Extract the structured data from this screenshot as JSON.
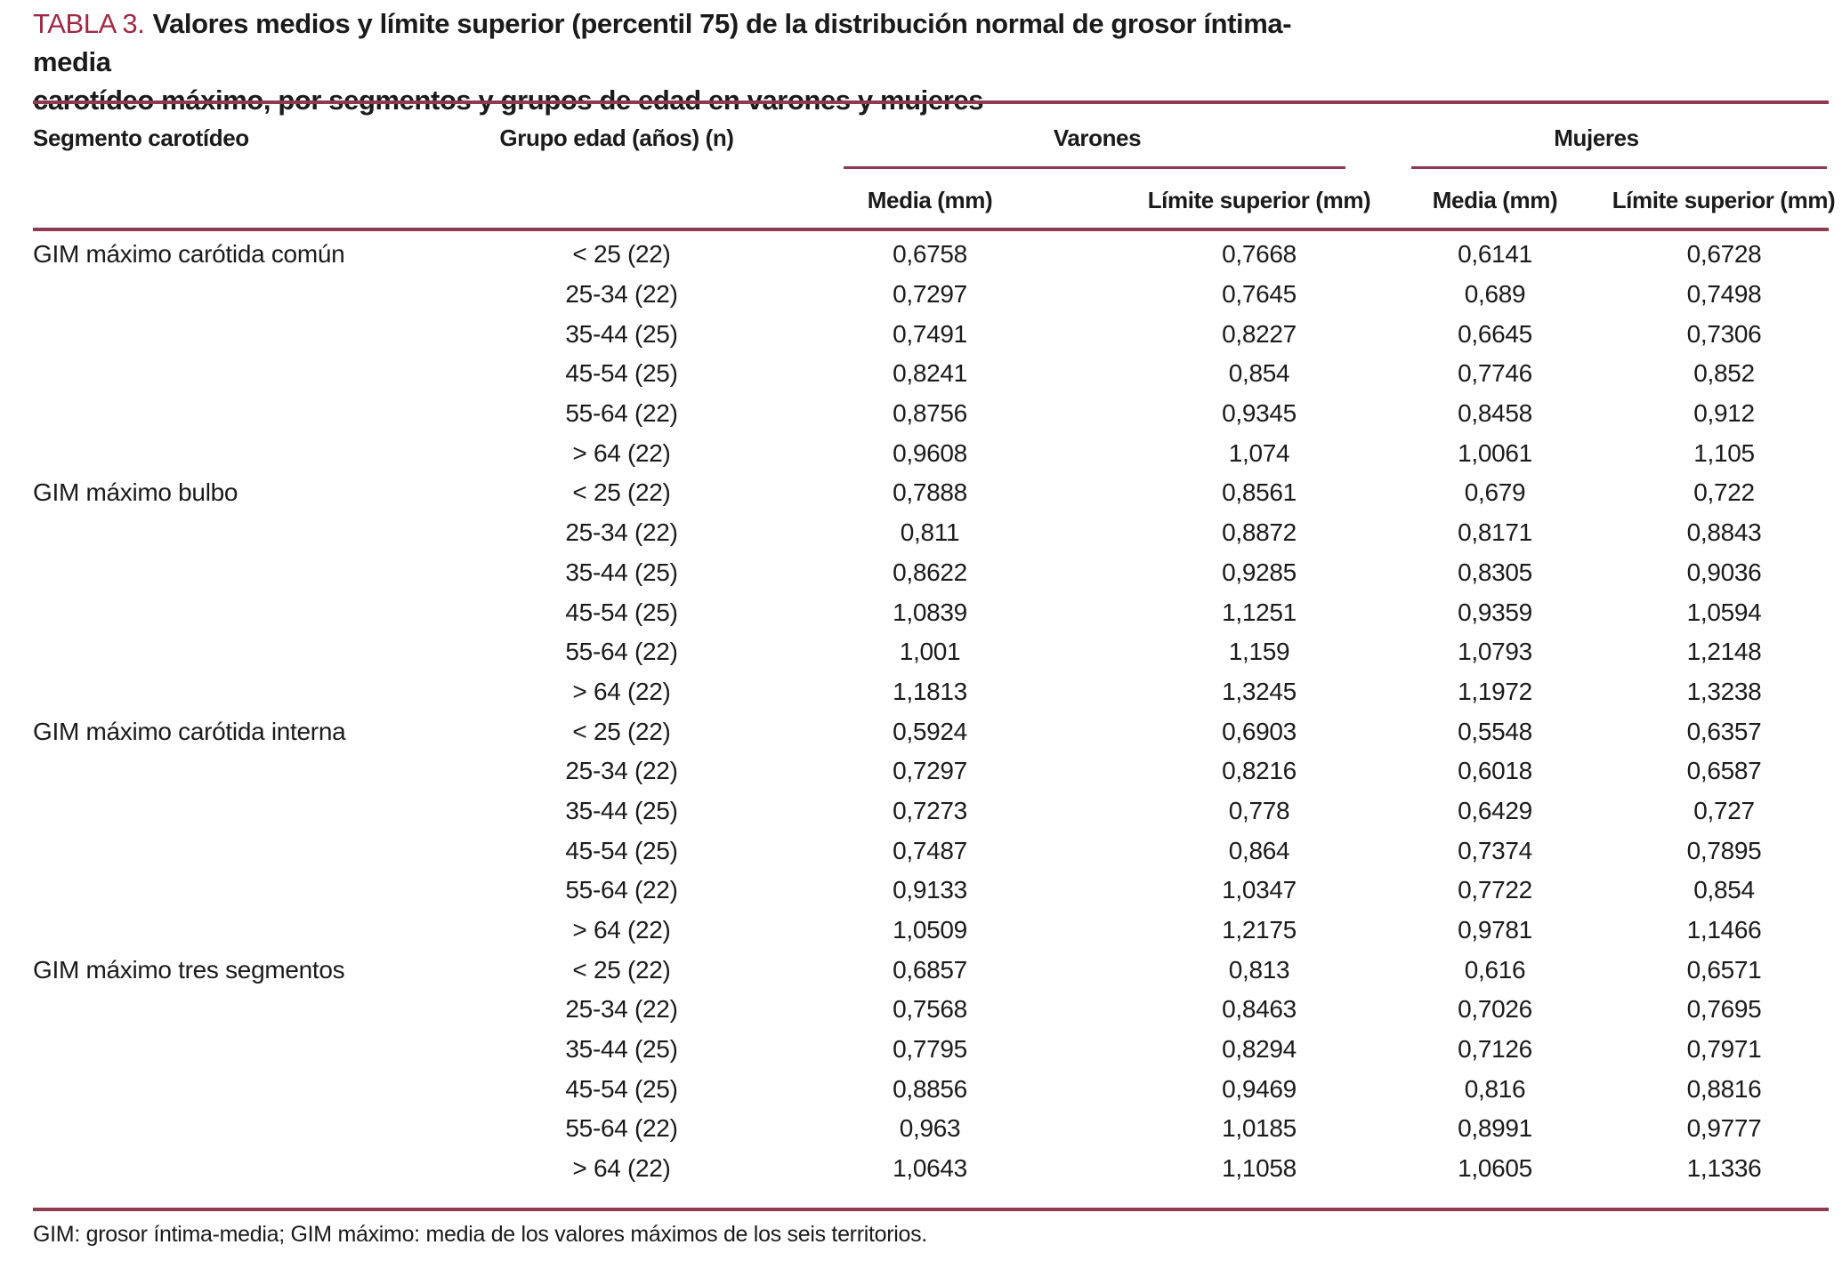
{
  "title": {
    "label": "TABLA 3.",
    "line1": "Valores medios y límite superior (percentil 75) de la distribución normal de grosor íntima-media",
    "line2": "carotídeo máximo, por segmentos y grupos de edad en varones y mujeres"
  },
  "header": {
    "col_segment": "Segmento carotídeo",
    "col_age": "Grupo edad (años) (n)",
    "group_men": "Varones",
    "group_women": "Mujeres",
    "sub_mean_men": "Media (mm)",
    "sub_upper_men": "Límite superior (mm)",
    "sub_mean_women": "Media (mm)",
    "sub_upper_women": "Límite superior (mm)"
  },
  "sections": [
    {
      "segment": "GIM máximo carótida común",
      "rows": [
        {
          "age": "< 25 (22)",
          "v_media": "0,6758",
          "v_limite": "0,7668",
          "m_media": "0,6141",
          "m_limite": "0,6728"
        },
        {
          "age": "25-34 (22)",
          "v_media": "0,7297",
          "v_limite": "0,7645",
          "m_media": "0,689",
          "m_limite": "0,7498"
        },
        {
          "age": "35-44 (25)",
          "v_media": "0,7491",
          "v_limite": "0,8227",
          "m_media": "0,6645",
          "m_limite": "0,7306"
        },
        {
          "age": "45-54 (25)",
          "v_media": "0,8241",
          "v_limite": "0,854",
          "m_media": "0,7746",
          "m_limite": "0,852"
        },
        {
          "age": "55-64 (22)",
          "v_media": "0,8756",
          "v_limite": "0,9345",
          "m_media": "0,8458",
          "m_limite": "0,912"
        },
        {
          "age": "> 64 (22)",
          "v_media": "0,9608",
          "v_limite": "1,074",
          "m_media": "1,0061",
          "m_limite": "1,105"
        }
      ]
    },
    {
      "segment": "GIM máximo bulbo",
      "rows": [
        {
          "age": "< 25 (22)",
          "v_media": "0,7888",
          "v_limite": "0,8561",
          "m_media": "0,679",
          "m_limite": "0,722"
        },
        {
          "age": "25-34 (22)",
          "v_media": "0,811",
          "v_limite": "0,8872",
          "m_media": "0,8171",
          "m_limite": "0,8843"
        },
        {
          "age": "35-44 (25)",
          "v_media": "0,8622",
          "v_limite": "0,9285",
          "m_media": "0,8305",
          "m_limite": "0,9036"
        },
        {
          "age": "45-54 (25)",
          "v_media": "1,0839",
          "v_limite": "1,1251",
          "m_media": "0,9359",
          "m_limite": "1,0594"
        },
        {
          "age": "55-64 (22)",
          "v_media": "1,001",
          "v_limite": "1,159",
          "m_media": "1,0793",
          "m_limite": "1,2148"
        },
        {
          "age": "> 64 (22)",
          "v_media": "1,1813",
          "v_limite": "1,3245",
          "m_media": "1,1972",
          "m_limite": "1,3238"
        }
      ]
    },
    {
      "segment": "GIM máximo carótida interna",
      "rows": [
        {
          "age": "< 25 (22)",
          "v_media": "0,5924",
          "v_limite": "0,6903",
          "m_media": "0,5548",
          "m_limite": "0,6357"
        },
        {
          "age": "25-34 (22)",
          "v_media": "0,7297",
          "v_limite": "0,8216",
          "m_media": "0,6018",
          "m_limite": "0,6587"
        },
        {
          "age": "35-44 (25)",
          "v_media": "0,7273",
          "v_limite": "0,778",
          "m_media": "0,6429",
          "m_limite": "0,727"
        },
        {
          "age": "45-54 (25)",
          "v_media": "0,7487",
          "v_limite": "0,864",
          "m_media": "0,7374",
          "m_limite": "0,7895"
        },
        {
          "age": "55-64 (22)",
          "v_media": "0,9133",
          "v_limite": "1,0347",
          "m_media": "0,7722",
          "m_limite": "0,854"
        },
        {
          "age": "> 64 (22)",
          "v_media": "1,0509",
          "v_limite": "1,2175",
          "m_media": "0,9781",
          "m_limite": "1,1466"
        }
      ]
    },
    {
      "segment": "GIM máximo tres segmentos",
      "rows": [
        {
          "age": "< 25 (22)",
          "v_media": "0,6857",
          "v_limite": "0,813",
          "m_media": "0,616",
          "m_limite": "0,6571"
        },
        {
          "age": "25-34 (22)",
          "v_media": "0,7568",
          "v_limite": "0,8463",
          "m_media": "0,7026",
          "m_limite": "0,7695"
        },
        {
          "age": "35-44 (25)",
          "v_media": "0,7795",
          "v_limite": "0,8294",
          "m_media": "0,7126",
          "m_limite": "0,7971"
        },
        {
          "age": "45-54 (25)",
          "v_media": "0,8856",
          "v_limite": "0,9469",
          "m_media": "0,816",
          "m_limite": "0,8816"
        },
        {
          "age": "55-64 (22)",
          "v_media": "0,963",
          "v_limite": "1,0185",
          "m_media": "0,8991",
          "m_limite": "0,9777"
        },
        {
          "age": "> 64 (22)",
          "v_media": "1,0643",
          "v_limite": "1,1058",
          "m_media": "1,0605",
          "m_limite": "1,1336"
        }
      ]
    }
  ],
  "footnote": "GIM: grosor íntima-media; GIM máximo: media de los valores máximos de los seis territorios.",
  "colors": {
    "accent": "#A12945",
    "rule": "#8E3A52",
    "text": "#1b1b1b"
  }
}
